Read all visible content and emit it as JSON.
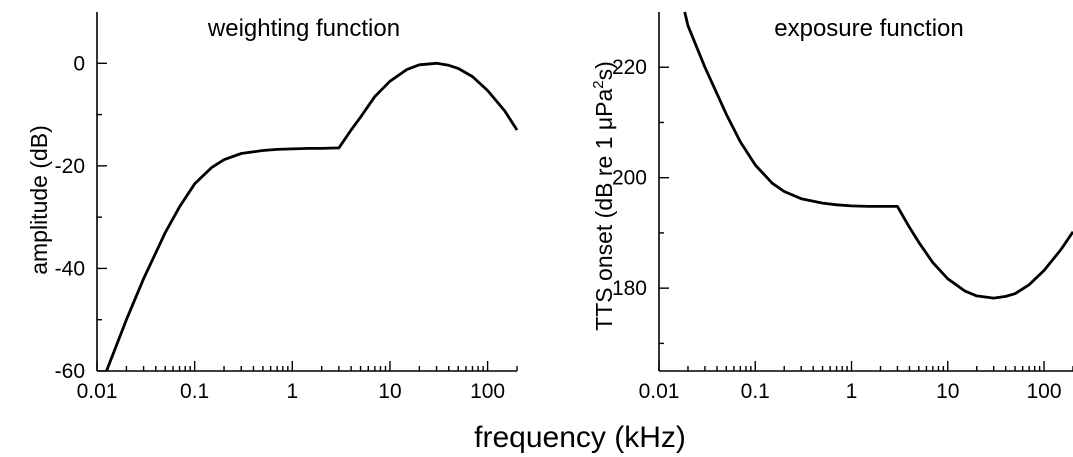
{
  "shared_xlabel": "frequency (kHz)",
  "chart_data": [
    {
      "type": "line",
      "title": "weighting function",
      "xlabel": "",
      "ylabel": "amplitude (dB)",
      "x_scale": "log",
      "xlim": [
        0.01,
        200
      ],
      "ylim": [
        -60,
        10
      ],
      "x_ticks": [
        0.01,
        0.1,
        1,
        10,
        100
      ],
      "x_tick_labels": [
        "0.01",
        "0.1",
        "1",
        "10",
        "100"
      ],
      "y_ticks": [
        -60,
        -40,
        -20,
        0
      ],
      "y_tick_labels": [
        "-60",
        "-40",
        "-20",
        "0"
      ],
      "series": [
        {
          "x": [
            0.0125,
            0.02,
            0.03,
            0.05,
            0.07,
            0.1,
            0.15,
            0.2,
            0.3,
            0.5,
            0.7,
            1,
            1.5,
            2,
            3,
            4,
            5,
            7,
            10,
            15,
            20,
            30,
            40,
            50,
            70,
            100,
            150,
            200
          ],
          "y": [
            -60,
            -50,
            -42,
            -33,
            -28,
            -23.5,
            -20.3,
            -18.8,
            -17.6,
            -17,
            -16.8,
            -16.7,
            -16.6,
            -16.6,
            -16.5,
            -13,
            -10.5,
            -6.5,
            -3.5,
            -1.2,
            -0.3,
            0,
            -0.4,
            -1,
            -2.6,
            -5.3,
            -9.3,
            -13
          ]
        }
      ]
    },
    {
      "type": "line",
      "title": "exposure function",
      "xlabel": "",
      "ylabel_main": "TTS onset (dB re 1 μPa",
      "ylabel_sup": "2",
      "ylabel_end": "s)",
      "x_scale": "log",
      "xlim": [
        0.01,
        200
      ],
      "ylim": [
        165,
        230
      ],
      "x_ticks": [
        0.01,
        0.1,
        1,
        10,
        100
      ],
      "x_tick_labels": [
        "0.01",
        "0.1",
        "1",
        "10",
        "100"
      ],
      "y_ticks": [
        180,
        200,
        220
      ],
      "y_tick_labels": [
        "180",
        "200",
        "220"
      ],
      "series": [
        {
          "x": [
            0.0185,
            0.02,
            0.03,
            0.05,
            0.07,
            0.1,
            0.15,
            0.2,
            0.3,
            0.5,
            0.7,
            1,
            1.5,
            2,
            3,
            4,
            5,
            7,
            10,
            15,
            20,
            30,
            40,
            50,
            70,
            100,
            150,
            200
          ],
          "y": [
            230,
            227.5,
            220,
            211.5,
            206.5,
            202.3,
            199,
            197.5,
            196.2,
            195.4,
            195.1,
            194.9,
            194.8,
            194.8,
            194.8,
            191,
            188.3,
            184.6,
            181.7,
            179.5,
            178.6,
            178.2,
            178.5,
            179,
            180.6,
            183.2,
            187,
            190.2
          ]
        }
      ]
    }
  ]
}
